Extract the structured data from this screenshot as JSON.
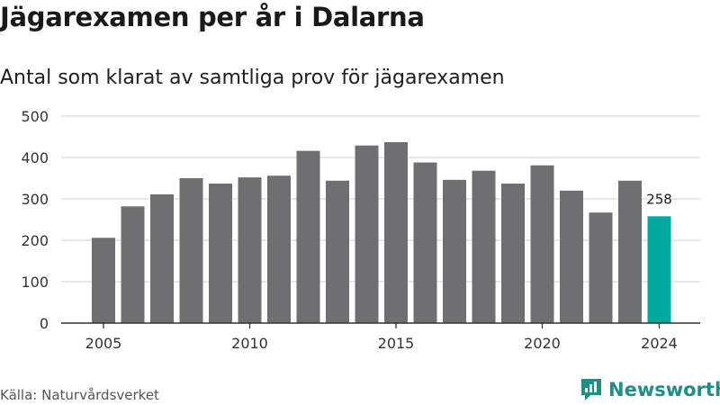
{
  "header": {
    "title": "Jägarexamen per år i Dalarna",
    "subtitle": "Antal som klarat av samtliga prov för jägarexamen"
  },
  "footer": {
    "source": "Källa: Naturvårdsverket",
    "brand": "Newsworthy"
  },
  "colors": {
    "bar": "#6f6e73",
    "highlight": "#00a99d",
    "grid": "#d9d9d9",
    "brand": "#1d8f86"
  },
  "chart_data": {
    "type": "bar",
    "title": "Jägarexamen per år i Dalarna",
    "subtitle": "Antal som klarat av samtliga prov för jägarexamen",
    "x": [
      2005,
      2006,
      2007,
      2008,
      2009,
      2010,
      2011,
      2012,
      2013,
      2014,
      2015,
      2016,
      2017,
      2018,
      2019,
      2020,
      2021,
      2022,
      2023,
      2024
    ],
    "values": [
      206,
      282,
      311,
      350,
      337,
      352,
      356,
      416,
      344,
      429,
      437,
      388,
      346,
      368,
      337,
      381,
      320,
      267,
      344,
      258
    ],
    "x_tick_labels": [
      "2005",
      "2010",
      "2015",
      "2020",
      "2024"
    ],
    "y_ticks": [
      0,
      100,
      200,
      300,
      400,
      500
    ],
    "ylim": [
      0,
      500
    ],
    "xlabel": "",
    "ylabel": "",
    "grid": true,
    "highlight_index": 19,
    "data_labels": [
      {
        "index": 19,
        "text": "258"
      }
    ]
  }
}
